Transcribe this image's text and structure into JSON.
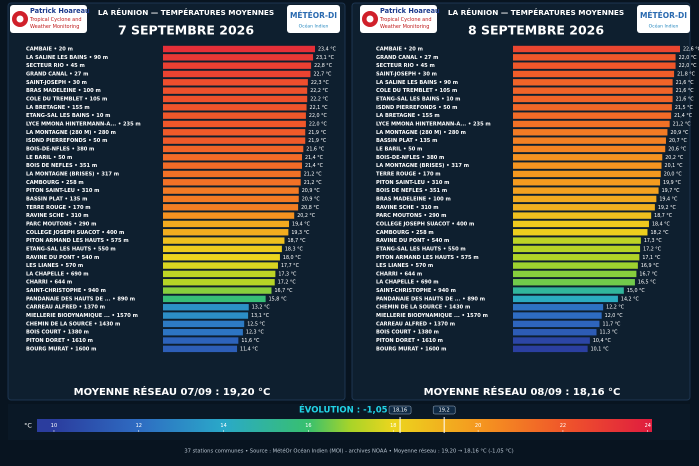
{
  "logos": {
    "left": [
      "Patrick Hoareau",
      "Tropical Cyclone and",
      "Weather Monitoring"
    ],
    "right": [
      "MÉTÉOR-DI",
      "Océan Indien"
    ]
  },
  "chart_data": [
    {
      "type": "barh",
      "title": "LA RÉUNION — TEMPÉRATURES MOYENNES",
      "subtitle": "7 SEPTEMBRE 2026",
      "categories": [
        "CAMBAIE • 20 m",
        "LA SALINE LES BAINS • 90 m",
        "SECTEUR RIO • 45 m",
        "GRAND CANAL • 27 m",
        "SAINT-JOSEPH • 30 m",
        "BRAS MADELEINE • 100 m",
        "COLE DU TREMBLET • 105 m",
        "LA BRETAGNE • 155 m",
        "ETANG-SAL LES BAINS • 10 m",
        "LYCE MMONA HINTERMANN-A... • 235 m",
        "LA MONTAGNE (280 M) • 280 m",
        "ISDND PIERREFONDS • 50 m",
        "BOIS-DE-NFLES • 380 m",
        "LE BARIL • 50 m",
        "BOIS DE NEFLES • 351 m",
        "LA MONTAGNE (BRISES) • 317 m",
        "CAMBOURG • 258 m",
        "PITON SAINT-LEU • 310 m",
        "BASSIN PLAT • 135 m",
        "TERRE ROUGE • 170 m",
        "RAVINE SCHE • 310 m",
        "PARC MOUTONS • 290 m",
        "COLLEGE JOSEPH SUACOT • 400 m",
        "PITON ARMAND LES HAUTS • 575 m",
        "ETANG-SAL LES HAUTS • 550 m",
        "RAVINE DU PONT • 540 m",
        "LES LIANES • 570 m",
        "LA CHAPELLE • 690 m",
        "CHARRI • 644 m",
        "SAINT-CHRISTOPHE • 940 m",
        "PANDANAIE DES HAUTS DE ... • 890 m",
        "CARREAU ALFRED • 1370 m",
        "MIELLERIE BIODYNAMIQUE ... • 1570 m",
        "CHEMIN DE LA SOURCE • 1430 m",
        "BOIS COURT • 1380 m",
        "PITON DORET • 1610 m",
        "BOURG MURAT • 1600 m"
      ],
      "values": [
        23.4,
        23.1,
        22.8,
        22.7,
        22.3,
        22.2,
        22.2,
        22.1,
        22.0,
        22.0,
        21.9,
        21.9,
        21.6,
        21.4,
        21.4,
        21.2,
        21.2,
        20.9,
        20.9,
        20.8,
        20.2,
        19.4,
        19.3,
        18.7,
        18.3,
        18.0,
        17.7,
        17.3,
        17.2,
        16.7,
        15.8,
        13.2,
        13.1,
        12.5,
        12.3,
        11.6,
        11.4
      ],
      "value_labels": [
        "23,4 °C",
        "23,1 °C",
        "22,8 °C",
        "22,7 °C",
        "22,3 °C",
        "22,2 °C",
        "22,2 °C",
        "22,1 °C",
        "22,0 °C",
        "22,0 °C",
        "21,9 °C",
        "21,9 °C",
        "21,6 °C",
        "21,4 °C",
        "21,4 °C",
        "21,2 °C",
        "21,2 °C",
        "20,9 °C",
        "20,9 °C",
        "20,8 °C",
        "20,2 °C",
        "19,4 °C",
        "19,3 °C",
        "18,7 °C",
        "18,3 °C",
        "18,0 °C",
        "17,7 °C",
        "17,3 °C",
        "17,2 °C",
        "16,7 °C",
        "15,8 °C",
        "13,2 °C",
        "13,1 °C",
        "12,5 °C",
        "12,3 °C",
        "11,6 °C",
        "11,4 °C"
      ],
      "annotation": "MOYENNE RÉSEAU 07/09 : 19,20 °C"
    },
    {
      "type": "barh",
      "title": "LA RÉUNION — TEMPÉRATURES MOYENNES",
      "subtitle": "8 SEPTEMBRE 2026",
      "categories": [
        "CAMBAIE • 20 m",
        "GRAND CANAL • 27 m",
        "SECTEUR RIO • 45 m",
        "SAINT-JOSEPH • 30 m",
        "LA SALINE LES BAINS • 90 m",
        "COLE DU TREMBLET • 105 m",
        "ETANG-SAL LES BAINS • 10 m",
        "ISDND PIERREFONDS • 50 m",
        "LA BRETAGNE • 155 m",
        "LYCE MMONA HINTERMANN-A... • 235 m",
        "LA MONTAGNE (280 M) • 280 m",
        "BASSIN PLAT • 135 m",
        "LE BARIL • 50 m",
        "BOIS-DE-NFLES • 380 m",
        "LA MONTAGNE (BRISES) • 317 m",
        "TERRE ROUGE • 170 m",
        "PITON SAINT-LEU • 310 m",
        "BOIS DE NEFLES • 351 m",
        "BRAS MADELEINE • 100 m",
        "RAVINE SCHE • 310 m",
        "PARC MOUTONS • 290 m",
        "COLLEGE JOSEPH SUACOT • 400 m",
        "CAMBOURG • 258 m",
        "RAVINE DU PONT • 540 m",
        "ETANG-SAL LES HAUTS • 550 m",
        "PITON ARMAND LES HAUTS • 575 m",
        "LES LIANES • 570 m",
        "CHARRI • 644 m",
        "LA CHAPELLE • 690 m",
        "SAINT-CHRISTOPHE • 940 m",
        "PANDANAIE DES HAUTS DE ... • 890 m",
        "CHEMIN DE LA SOURCE • 1430 m",
        "MIELLERIE BIODYNAMIQUE ... • 1570 m",
        "CARREAU ALFRED • 1370 m",
        "BOIS COURT • 1380 m",
        "PITON DORET • 1610 m",
        "BOURG MURAT • 1600 m"
      ],
      "values": [
        22.6,
        22.0,
        22.0,
        21.8,
        21.6,
        21.6,
        21.6,
        21.5,
        21.4,
        21.2,
        20.9,
        20.7,
        20.6,
        20.2,
        20.1,
        20.0,
        19.9,
        19.7,
        19.4,
        19.2,
        18.7,
        18.4,
        18.2,
        17.3,
        17.2,
        17.1,
        16.9,
        16.7,
        16.5,
        15.0,
        14.2,
        12.2,
        12.0,
        11.7,
        11.3,
        10.4,
        10.1
      ],
      "value_labels": [
        "22,6 °C",
        "22,0 °C",
        "22,0 °C",
        "21,8 °C",
        "21,6 °C",
        "21,6 °C",
        "21,6 °C",
        "21,5 °C",
        "21,4 °C",
        "21,2 °C",
        "20,9 °C",
        "20,7 °C",
        "20,6 °C",
        "20,2 °C",
        "20,1 °C",
        "20,0 °C",
        "19,9 °C",
        "19,7 °C",
        "19,4 °C",
        "19,2 °C",
        "18,7 °C",
        "18,4 °C",
        "18,2 °C",
        "17,3 °C",
        "17,2 °C",
        "17,1 °C",
        "16,9 °C",
        "16,7 °C",
        "16,5 °C",
        "15,0 °C",
        "14,2 °C",
        "12,2 °C",
        "12,0 °C",
        "11,7 °C",
        "11,3 °C",
        "10,4 °C",
        "10,1 °C"
      ],
      "annotation": "MOYENNE RÉSEAU 08/09 : 18,16 °C"
    },
    {
      "type": "colorbar",
      "title": "ÉVOLUTION : -1,05 °C",
      "label": "°C",
      "xlim": [
        9.6,
        24.1
      ],
      "xticks": [
        10,
        12,
        14,
        16,
        18,
        20,
        22,
        24
      ],
      "stops": [
        [
          10,
          "#2b3d9e"
        ],
        [
          12,
          "#2e6cc2"
        ],
        [
          14,
          "#2aa9c9"
        ],
        [
          16,
          "#38c06e"
        ],
        [
          17,
          "#a9d428"
        ],
        [
          18,
          "#ecd51e"
        ],
        [
          20,
          "#f5981f"
        ],
        [
          22,
          "#f0572a"
        ],
        [
          24,
          "#e01e3e"
        ]
      ],
      "markers": [
        {
          "value": 18.16,
          "label": "18,16"
        },
        {
          "value": 19.2,
          "label": "19,2"
        }
      ]
    }
  ],
  "footer": "37 stations communes  •  Source : MétéOr Océan Indien (MOI) - archives NOAA  •  Moyenne réseau : 19,20 → 18,16 °C (-1,05 °C)"
}
